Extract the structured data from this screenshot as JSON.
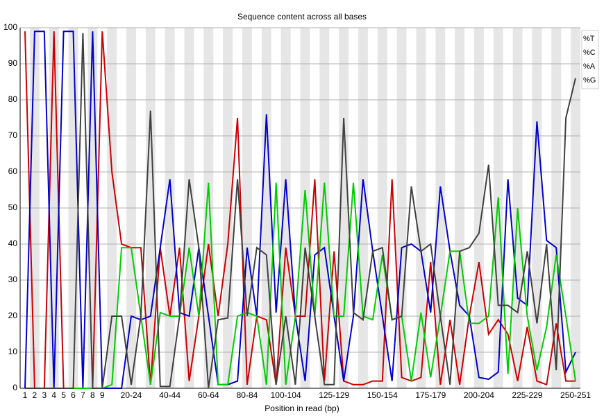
{
  "chart_data": {
    "type": "line",
    "title": "Sequence content across all bases",
    "x_label": "Position in read (bp)",
    "categories": [
      "1",
      "2",
      "3",
      "4",
      "5",
      "6",
      "7",
      "8",
      "9",
      null,
      null,
      "20-24",
      null,
      null,
      null,
      "40-44",
      null,
      null,
      null,
      "60-64",
      null,
      null,
      null,
      "80-84",
      null,
      null,
      null,
      "100-104",
      null,
      null,
      null,
      null,
      "125-129",
      null,
      null,
      null,
      null,
      "150-154",
      null,
      null,
      null,
      null,
      "175-179",
      null,
      null,
      null,
      null,
      "200-204",
      null,
      null,
      null,
      null,
      "225-229",
      null,
      null,
      null,
      null,
      "250-251"
    ],
    "series": [
      {
        "name": "%T",
        "color": "#cc0000",
        "values": [
          99,
          0,
          0,
          99,
          0,
          0,
          0,
          0,
          99,
          60,
          40,
          39,
          39,
          1,
          39,
          20,
          39,
          2,
          20,
          40,
          20,
          40,
          75,
          1,
          20,
          19,
          1,
          39,
          20,
          20,
          58,
          2,
          38,
          2,
          1,
          1,
          2,
          2,
          58,
          3,
          2,
          3,
          35,
          1,
          19,
          1,
          20,
          35,
          15,
          19,
          15,
          2,
          17,
          2,
          1,
          18,
          2,
          2
        ]
      },
      {
        "name": "%C",
        "color": "#0000cc",
        "values": [
          0,
          99,
          99,
          0,
          99,
          99,
          0,
          99,
          0,
          0,
          0,
          20,
          19,
          20,
          39,
          58,
          21,
          20,
          39,
          20,
          1,
          1,
          2,
          39,
          20,
          76,
          21,
          58,
          20,
          2,
          37,
          39,
          20,
          2,
          20,
          58,
          38,
          20,
          2,
          39,
          40,
          38,
          21,
          56,
          38,
          23,
          20,
          3,
          2.5,
          4.5,
          58,
          25,
          23,
          74,
          41,
          39,
          4.5,
          10
        ]
      },
      {
        "name": "%A",
        "color": "#00cc00",
        "values": [
          0,
          0,
          0,
          0,
          0,
          0,
          0,
          0,
          0,
          1,
          39,
          39,
          20,
          1,
          21,
          20,
          20,
          39,
          20,
          57,
          1,
          1,
          20,
          21,
          20,
          1,
          57,
          1,
          20,
          55,
          20,
          57,
          20,
          20,
          57,
          20,
          19,
          37,
          19,
          20,
          2,
          21,
          3,
          20,
          38,
          38,
          18,
          18,
          20,
          53,
          4,
          50,
          20,
          5,
          17,
          37,
          20,
          2
        ]
      },
      {
        "name": "%G",
        "color": "#404040",
        "values": [
          0,
          0,
          0,
          0,
          0,
          0,
          98.5,
          0,
          0,
          20,
          20,
          1,
          20,
          77,
          0.5,
          0.5,
          20,
          58,
          39,
          0,
          19,
          19.5,
          58,
          20,
          39,
          37,
          1,
          20,
          1,
          39,
          20,
          1,
          1,
          75,
          21,
          19,
          38,
          39,
          19,
          20,
          56,
          38,
          40,
          20,
          1,
          38,
          39,
          43,
          62,
          23,
          23,
          21,
          38,
          18,
          40,
          5,
          75,
          86
        ]
      }
    ],
    "ylim": [
      0,
      100
    ],
    "yticks": [
      0,
      10,
      20,
      30,
      40,
      50,
      60,
      70,
      80,
      90,
      100
    ],
    "grid": true,
    "legend": "top-right"
  }
}
